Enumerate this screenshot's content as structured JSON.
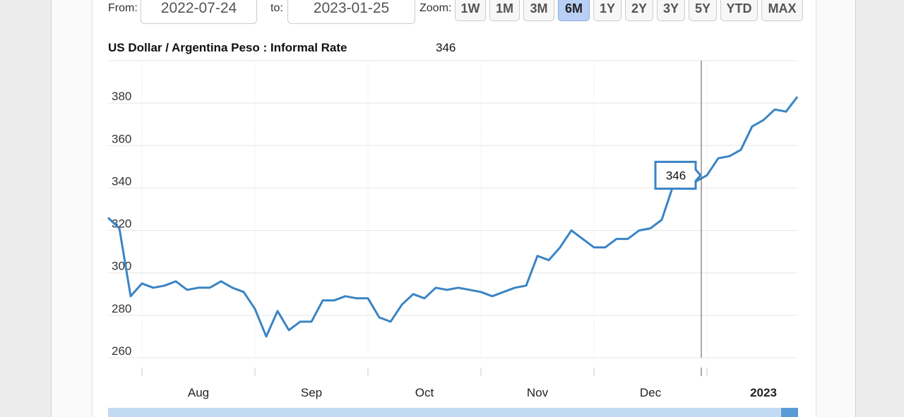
{
  "controls": {
    "from_label": "From:",
    "from_value": "2022-07-24",
    "to_label": "to:",
    "to_value": "2023-01-25",
    "zoom_label": "Zoom:",
    "zoom_buttons": [
      "1W",
      "1M",
      "3M",
      "6M",
      "1Y",
      "2Y",
      "3Y",
      "5Y",
      "YTD",
      "MAX"
    ],
    "active_zoom": "6M"
  },
  "chart_data": {
    "type": "line",
    "title": "US Dollar / Argentina Peso : Informal Rate",
    "hover_value": 346,
    "categories": [
      null,
      null,
      null,
      null,
      null,
      null,
      null,
      null,
      "Aug",
      null,
      null,
      null,
      null,
      null,
      null,
      null,
      null,
      null,
      "Sep",
      null,
      null,
      null,
      null,
      null,
      null,
      null,
      null,
      null,
      "Oct",
      null,
      null,
      null,
      null,
      null,
      null,
      null,
      null,
      null,
      "Nov",
      null,
      null,
      null,
      null,
      null,
      null,
      null,
      null,
      null,
      "Dec",
      null,
      null,
      null,
      null,
      null,
      null,
      null,
      null,
      null,
      "2023",
      null,
      null,
      null
    ],
    "series": [
      {
        "name": "US Dollar / Argentina Peso : Informal Rate",
        "color": "#3a84c4",
        "values": [
          326,
          321,
          289,
          295,
          293,
          294,
          296,
          292,
          293,
          293,
          296,
          293,
          291,
          283,
          270,
          282,
          273,
          277,
          277,
          287,
          287,
          289,
          288,
          288,
          279,
          277,
          285,
          290,
          288,
          293,
          292,
          293,
          292,
          291,
          289,
          291,
          293,
          294,
          308,
          306,
          312,
          320,
          316,
          312,
          312,
          316,
          316,
          320,
          321,
          325,
          341,
          347,
          343,
          346,
          354,
          355,
          358,
          369,
          372,
          377,
          376,
          383
        ]
      }
    ],
    "ylim": [
      260,
      400
    ],
    "yticks": [
      260,
      280,
      300,
      320,
      340,
      360,
      380
    ],
    "grid": true
  }
}
